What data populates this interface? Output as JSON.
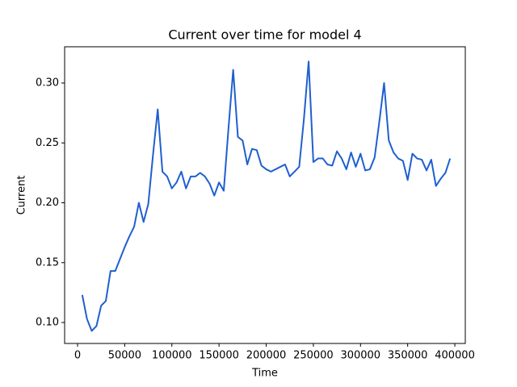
{
  "chart_data": {
    "type": "line",
    "title": "Current over time for model 4",
    "x_label": "Time",
    "y_label": "Current",
    "x": [
      5000,
      10000,
      15000,
      20000,
      25000,
      30000,
      35000,
      40000,
      45000,
      50000,
      55000,
      60000,
      65000,
      70000,
      75000,
      80000,
      85000,
      90000,
      95000,
      100000,
      105000,
      110000,
      115000,
      120000,
      125000,
      130000,
      135000,
      140000,
      145000,
      150000,
      155000,
      160000,
      165000,
      170000,
      175000,
      180000,
      185000,
      190000,
      195000,
      200000,
      205000,
      210000,
      215000,
      220000,
      225000,
      230000,
      235000,
      240000,
      245000,
      250000,
      255000,
      260000,
      265000,
      270000,
      275000,
      280000,
      285000,
      290000,
      295000,
      300000,
      305000,
      310000,
      315000,
      320000,
      325000,
      330000,
      335000,
      340000,
      345000,
      350000,
      355000,
      360000,
      365000,
      370000,
      375000,
      380000,
      385000,
      390000,
      395000
    ],
    "series": [
      {
        "color": "#1f5fd0",
        "values": [
          0.123,
          0.103,
          0.093,
          0.097,
          0.114,
          0.118,
          0.143,
          0.143,
          0.153,
          0.163,
          0.172,
          0.18,
          0.2,
          0.184,
          0.199,
          0.24,
          0.278,
          0.226,
          0.222,
          0.212,
          0.217,
          0.226,
          0.212,
          0.222,
          0.222,
          0.225,
          0.222,
          0.216,
          0.206,
          0.217,
          0.21,
          0.262,
          0.311,
          0.255,
          0.252,
          0.232,
          0.245,
          0.244,
          0.231,
          0.228,
          0.226,
          0.228,
          0.23,
          0.232,
          0.222,
          0.226,
          0.23,
          0.27,
          0.318,
          0.234,
          0.237,
          0.237,
          0.232,
          0.231,
          0.243,
          0.237,
          0.228,
          0.242,
          0.23,
          0.241,
          0.227,
          0.228,
          0.238,
          0.268,
          0.3,
          0.252,
          0.242,
          0.237,
          0.235,
          0.219,
          0.241,
          0.237,
          0.236,
          0.227,
          0.236,
          0.214,
          0.22,
          0.225,
          0.237
        ]
      }
    ],
    "xlim": [
      -13700,
      411100
    ],
    "ylim": [
      0.0825,
      0.3303
    ],
    "xticks": [
      0,
      50000,
      100000,
      150000,
      200000,
      250000,
      300000,
      350000,
      400000
    ],
    "yticks": [
      {
        "value": 0.1,
        "label": "0.10"
      },
      0.15,
      {
        "value": 0.2,
        "label": "0.20"
      },
      0.25,
      {
        "value": 0.3,
        "label": "0.30"
      }
    ]
  }
}
